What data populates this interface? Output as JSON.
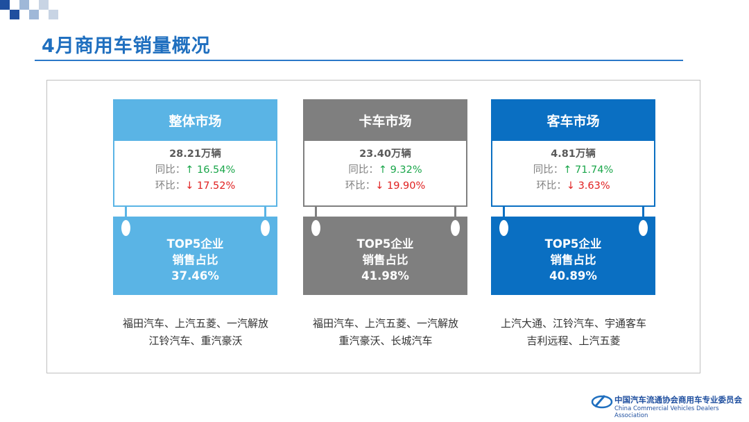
{
  "header": {
    "title": "4月商用车销量概况"
  },
  "cards": [
    {
      "name": "整体市场",
      "volume": "28.21万辆",
      "yoy_label": "同比：",
      "yoy": "↑ 16.54%",
      "mom_label": "环比：",
      "mom": "↓ 17.52%",
      "top5_lines": [
        "TOP5企业",
        "销售占比"
      ],
      "top5_share": "37.46%",
      "companies": [
        "福田汽车、上汽五菱、一汽解放",
        "江铃汽车、重汽豪沃"
      ]
    },
    {
      "name": "卡车市场",
      "volume": "23.40万辆",
      "yoy_label": "同比：",
      "yoy": "↑ 9.32%",
      "mom_label": "环比：",
      "mom": "↓ 19.90%",
      "top5_lines": [
        "TOP5企业",
        "销售占比"
      ],
      "top5_share": "41.98%",
      "companies": [
        "福田汽车、上汽五菱、一汽解放",
        "重汽豪沃、长城汽车"
      ]
    },
    {
      "name": "客车市场",
      "volume": "4.81万辆",
      "yoy_label": "同比：",
      "yoy": "↑ 71.74%",
      "mom_label": "环比：",
      "mom": "↓ 3.63%",
      "top5_lines": [
        "TOP5企业",
        "销售占比"
      ],
      "top5_share": "40.89%",
      "companies": [
        "上汽大通、江铃汽车、宇通客车",
        "吉利远程、上汽五菱"
      ]
    }
  ],
  "footer": {
    "org": "中国汽车流通协会商用车专业委员会",
    "org_en": "China Commercial Vehicles Dealers Association"
  }
}
